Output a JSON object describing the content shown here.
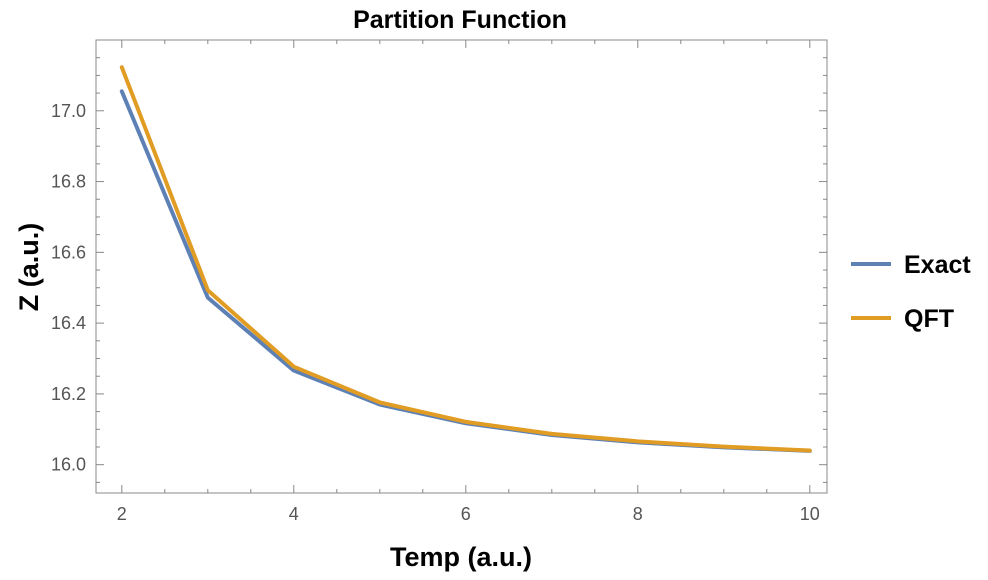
{
  "chart_data": {
    "type": "line",
    "title": "Partition Function",
    "xlabel": "Temp (a.u.)",
    "ylabel": "Z (a.u.)",
    "xlim": [
      1.7,
      10.2
    ],
    "ylim": [
      15.92,
      17.2
    ],
    "x_ticks": [
      2,
      4,
      6,
      8,
      10
    ],
    "x_tick_labels": [
      "2",
      "4",
      "6",
      "8",
      "10"
    ],
    "y_ticks": [
      16.0,
      16.2,
      16.4,
      16.6,
      16.8,
      17.0
    ],
    "y_tick_labels": [
      "16.0",
      "16.2",
      "16.4",
      "16.6",
      "16.8",
      "17.0"
    ],
    "grid": false,
    "legend_position": "right",
    "x": [
      2,
      3,
      4,
      5,
      6,
      7,
      8,
      9,
      10
    ],
    "series": [
      {
        "name": "Exact",
        "color": "#5e81b5",
        "values": [
          17.055,
          16.472,
          16.266,
          16.17,
          16.117,
          16.084,
          16.063,
          16.049,
          16.039
        ]
      },
      {
        "name": "QFT",
        "color": "#e19c24",
        "values": [
          17.123,
          16.493,
          16.277,
          16.176,
          16.121,
          16.087,
          16.066,
          16.051,
          16.04
        ]
      }
    ]
  }
}
